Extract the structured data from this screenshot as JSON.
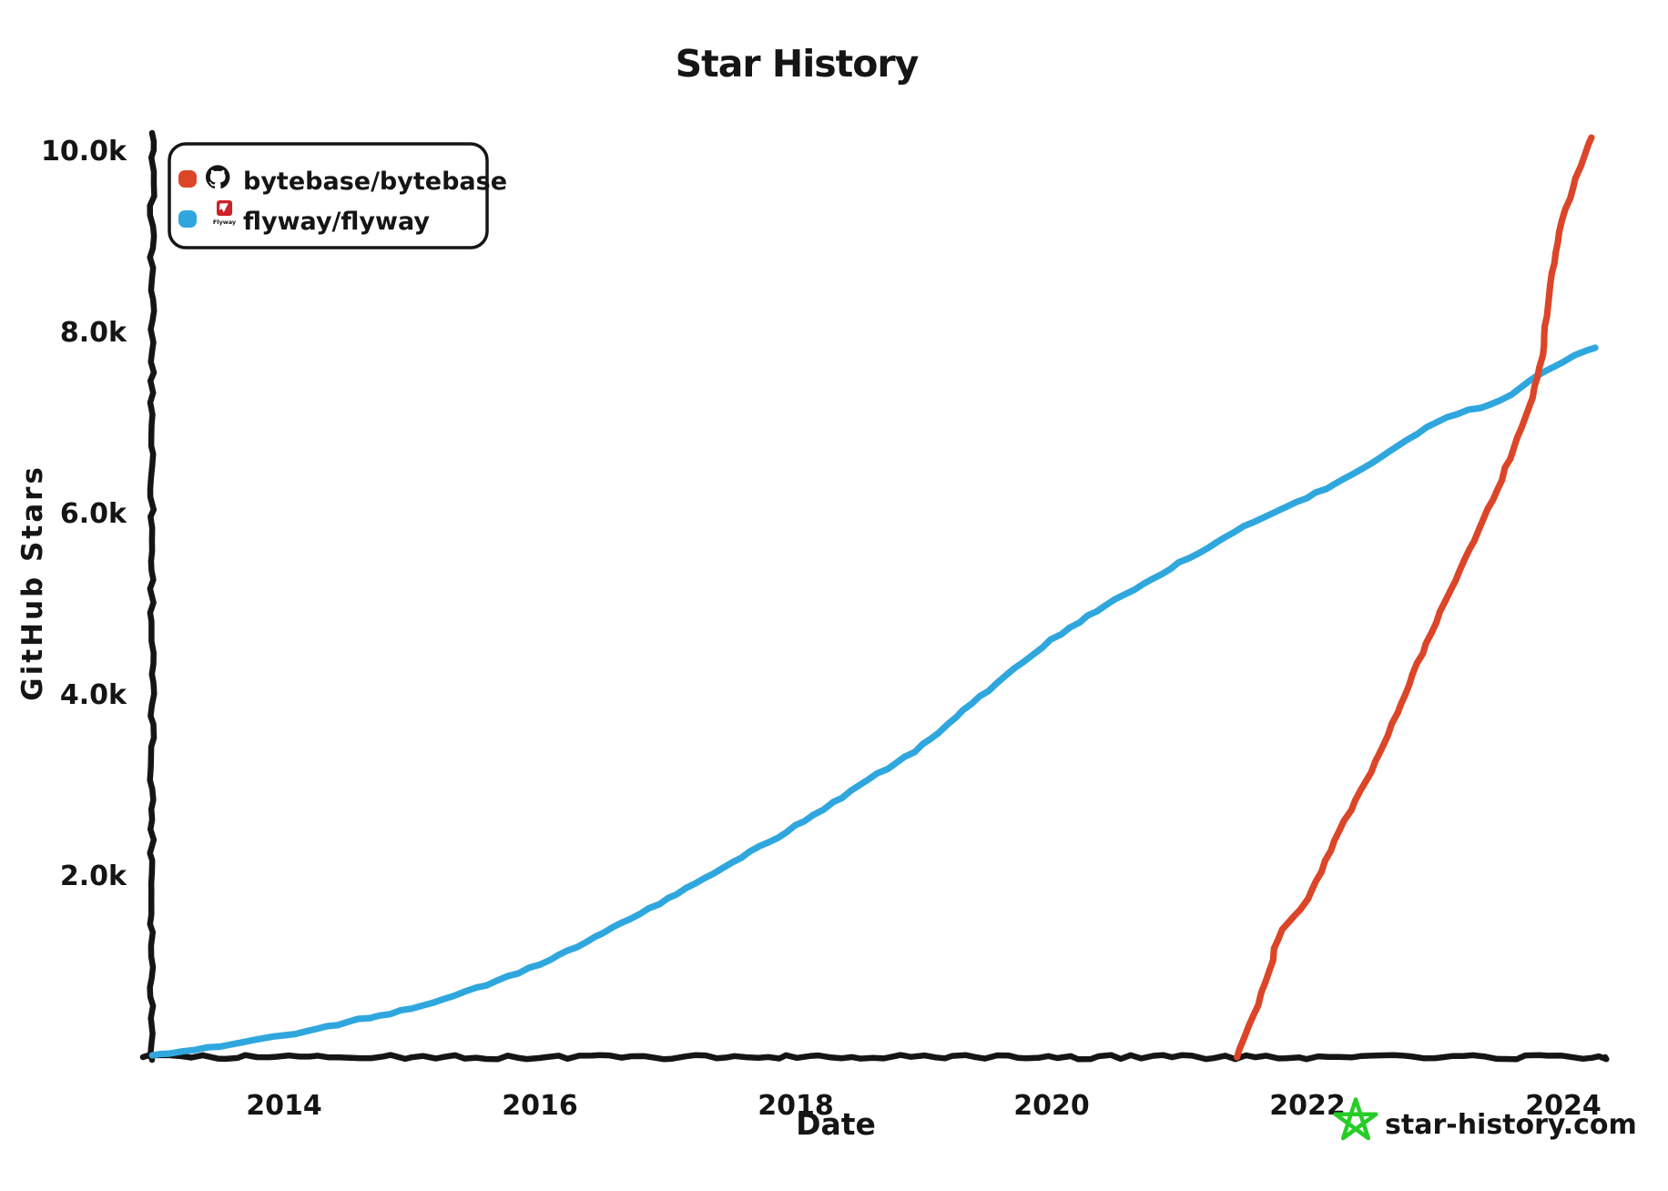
{
  "title": "Star History",
  "watermark": {
    "text": "star-history.com",
    "star_color": "#27cd27",
    "text_color": "#7d7d7d"
  },
  "legend": {
    "items": [
      {
        "label": "bytebase/bytebase",
        "color": "#dc4528",
        "icon": "github-logo"
      },
      {
        "label": "flyway/flyway",
        "color": "#2fa7de",
        "icon": "flyway-logo",
        "icon_text": "Flyway",
        "icon_color": "#cc2229"
      }
    ]
  },
  "chart_data": {
    "type": "line",
    "title": "Star History",
    "xlabel": "Date",
    "ylabel": "GitHub Stars",
    "x_unit": "decimal_year",
    "xlim": [
      2012.95,
      2024.45
    ],
    "ylim": [
      0,
      10000
    ],
    "grid": false,
    "legend_position": "top-left",
    "x_ticks": [
      {
        "v": 2014,
        "label": "2014"
      },
      {
        "v": 2016,
        "label": "2016"
      },
      {
        "v": 2018,
        "label": "2018"
      },
      {
        "v": 2020,
        "label": "2020"
      },
      {
        "v": 2022,
        "label": "2022"
      },
      {
        "v": 2024,
        "label": "2024"
      }
    ],
    "y_ticks": [
      {
        "v": 10000,
        "label": "10.0k"
      },
      {
        "v": 8000,
        "label": "8.0k"
      },
      {
        "v": 6000,
        "label": "6.0k"
      },
      {
        "v": 4000,
        "label": "4.0k"
      },
      {
        "v": 2000,
        "label": "2.0k"
      }
    ],
    "series": [
      {
        "name": "bytebase/bytebase",
        "color": "#dc4528",
        "x": [
          2021.45,
          2021.55,
          2021.7,
          2021.8,
          2022.0,
          2022.25,
          2022.5,
          2022.7,
          2023.0,
          2023.3,
          2023.55,
          2023.8,
          2023.88,
          2023.97,
          2024.1,
          2024.22
        ],
        "y": [
          0,
          350,
          950,
          1400,
          1750,
          2500,
          3150,
          3800,
          4800,
          5700,
          6500,
          7500,
          8300,
          9100,
          9700,
          10150
        ]
      },
      {
        "name": "flyway/flyway",
        "color": "#2fa7de",
        "x": [
          2012.97,
          2013.5,
          2014.0,
          2014.5,
          2015.0,
          2015.5,
          2016.0,
          2016.5,
          2017.0,
          2017.5,
          2018.0,
          2018.5,
          2019.0,
          2019.5,
          2020.0,
          2020.5,
          2021.0,
          2021.5,
          2022.0,
          2022.5,
          2023.0,
          2023.5,
          2023.79,
          2024.0,
          2024.25
        ],
        "y": [
          20,
          120,
          240,
          390,
          540,
          760,
          1030,
          1380,
          1750,
          2150,
          2550,
          3000,
          3450,
          4050,
          4600,
          5050,
          5450,
          5850,
          6180,
          6550,
          7000,
          7250,
          7520,
          7680,
          7830
        ]
      }
    ]
  }
}
